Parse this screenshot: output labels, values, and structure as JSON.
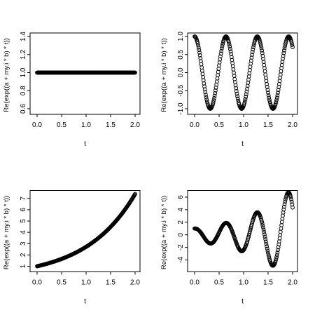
{
  "chart_data": [
    {
      "type": "scatter",
      "title": "",
      "xlabel": "t",
      "ylabel": "Re(exp((a + my.i * b) * t))",
      "xlim": [
        0,
        2
      ],
      "ylim": [
        0.6,
        1.4
      ],
      "x_ticks": [
        "0.0",
        "0.5",
        "1.0",
        "1.5",
        "2.0"
      ],
      "y_ticks": [
        "0.6",
        "0.8",
        "1.0",
        "1.2",
        "1.4"
      ],
      "series": [
        {
          "x": [
            0.0,
            0.25,
            0.5,
            0.75,
            1.0,
            1.25,
            1.5,
            1.75,
            2.0
          ],
          "y": [
            1.0,
            1.0,
            1.0,
            1.0,
            1.0,
            1.0,
            1.0,
            1.0,
            1.0
          ]
        }
      ]
    },
    {
      "type": "scatter",
      "title": "",
      "xlabel": "t",
      "ylabel": "Re(exp((a + my.i * b) * t))",
      "xlim": [
        0,
        2
      ],
      "ylim": [
        -1,
        1
      ],
      "x_ticks": [
        "0.0",
        "0.5",
        "1.0",
        "1.5",
        "2.0"
      ],
      "y_ticks": [
        "-1.0",
        "-0.5",
        "0.0",
        "0.5",
        "1.0"
      ],
      "series": [
        {
          "x": [
            0.0,
            0.16,
            0.32,
            0.48,
            0.64,
            0.8,
            0.96,
            1.12,
            1.28,
            1.44,
            1.6,
            1.76,
            1.92,
            2.0
          ],
          "y": [
            1.0,
            0.0,
            -1.0,
            0.0,
            1.0,
            0.0,
            -1.0,
            0.0,
            1.0,
            0.0,
            -1.0,
            0.0,
            1.0,
            0.45
          ]
        }
      ]
    },
    {
      "type": "scatter",
      "title": "",
      "xlabel": "t",
      "ylabel": "Re(exp((a + my.i * b) * t))",
      "xlim": [
        0,
        2
      ],
      "ylim": [
        1,
        7.39
      ],
      "x_ticks": [
        "0.0",
        "0.5",
        "1.0",
        "1.5",
        "2.0"
      ],
      "y_ticks": [
        "1",
        "2",
        "3",
        "4",
        "5",
        "6",
        "7"
      ],
      "series": [
        {
          "x": [
            0.0,
            0.25,
            0.5,
            0.75,
            1.0,
            1.25,
            1.5,
            1.75,
            2.0
          ],
          "y": [
            1.0,
            1.28,
            1.65,
            2.12,
            2.72,
            3.49,
            4.48,
            5.75,
            7.39
          ]
        }
      ]
    },
    {
      "type": "scatter",
      "title": "",
      "xlabel": "t",
      "ylabel": "Re(exp((a + my.i * b) * t))",
      "xlim": [
        0,
        2
      ],
      "ylim": [
        -5,
        6.5
      ],
      "x_ticks": [
        "0.0",
        "0.5",
        "1.0",
        "1.5",
        "2.0"
      ],
      "y_ticks": [
        "-4",
        "-2",
        "0",
        "2",
        "4",
        "6"
      ],
      "series": [
        {
          "x": [
            0.0,
            0.05,
            0.15,
            0.3,
            0.5,
            0.63,
            0.8,
            0.96,
            1.12,
            1.27,
            1.45,
            1.6,
            1.75,
            1.9,
            2.0
          ],
          "y": [
            1.0,
            1.0,
            0.3,
            -1.3,
            0.5,
            1.9,
            0.2,
            -2.6,
            0.3,
            3.6,
            0.2,
            -4.9,
            0.5,
            6.5,
            3.3
          ]
        }
      ]
    }
  ]
}
